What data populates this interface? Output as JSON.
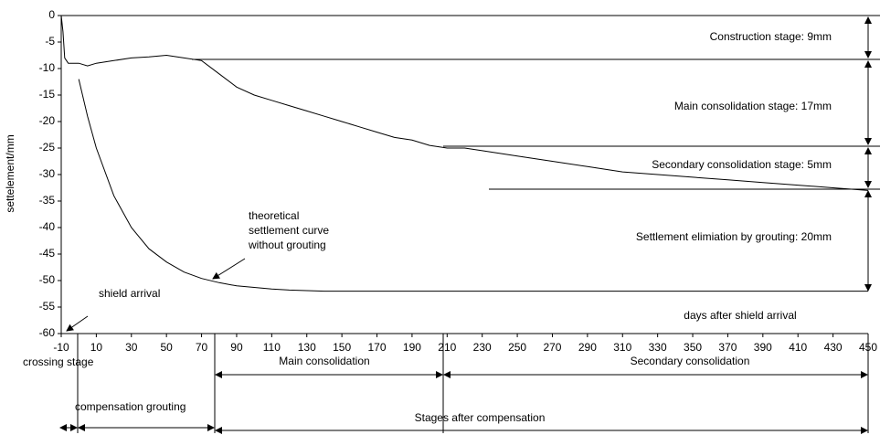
{
  "chart_data": {
    "type": "line",
    "y_label": "settelement/mm",
    "x_label": "days after shield arrival",
    "x": [
      -10,
      -9,
      -8,
      -6,
      0,
      5,
      10,
      20,
      30,
      40,
      50,
      60,
      70,
      80,
      90,
      100,
      110,
      120,
      130,
      140,
      150,
      160,
      170,
      180,
      190,
      200,
      210,
      220,
      230,
      250,
      270,
      290,
      310,
      330,
      350,
      370,
      390,
      410,
      430,
      450
    ],
    "series": [
      {
        "color": "#000000",
        "values": [
          0,
          -3,
          -8,
          -9,
          -9,
          -9.5,
          -9,
          -8.5,
          -8,
          -7.8,
          -7.5,
          -8,
          -8.5,
          -11,
          -13.5,
          -15,
          -16,
          -17,
          -18,
          -19,
          -20,
          -21,
          -22,
          -23,
          -23.5,
          -24.5,
          -25,
          -25,
          -25.5,
          -26.5,
          -27.5,
          -28.5,
          -29.5,
          -30,
          -30.5,
          -31,
          -31.5,
          -32,
          -32.5,
          -33
        ]
      },
      {
        "color": "#000000",
        "values": [
          null,
          null,
          null,
          null,
          -12,
          -19,
          -25,
          -34,
          -40,
          -44,
          -46.5,
          -48.4,
          -49.6,
          -50.4,
          -51,
          -51.3,
          -51.6,
          -51.8,
          -51.9,
          -52,
          -52,
          -52,
          -52,
          -52,
          -52,
          -52,
          -52,
          -52,
          -52,
          -52,
          -52,
          -52,
          -52,
          -52,
          -52,
          -52,
          -52,
          -52,
          -52,
          -52
        ]
      }
    ],
    "xlim": [
      -10,
      450
    ],
    "xticks": [
      -10,
      10,
      30,
      50,
      70,
      90,
      110,
      130,
      150,
      170,
      190,
      210,
      230,
      250,
      270,
      290,
      310,
      330,
      350,
      370,
      390,
      410,
      430,
      450
    ],
    "ylim": [
      -60,
      0
    ],
    "yticks": [
      0,
      -5,
      -10,
      -15,
      -20,
      -25,
      -30,
      -35,
      -40,
      -45,
      -50,
      -55,
      -60
    ],
    "annotations": {
      "construction": "Construction stage: 9mm",
      "main": "Main consolidation stage: 17mm",
      "secondary": "Secondary consolidation stage: 5mm",
      "grouting": "Settlement elimiation by  grouting: 20mm",
      "theoretical": [
        "theoretical",
        "settlement curve",
        "without grouting"
      ],
      "shield": "shield arrival"
    },
    "stages": {
      "crossing": "crossing stage",
      "compensation": "compensation grouting",
      "main": "Main consolidation",
      "secondary": "Secondary consolidation",
      "after": "Stages after  compensation"
    }
  }
}
